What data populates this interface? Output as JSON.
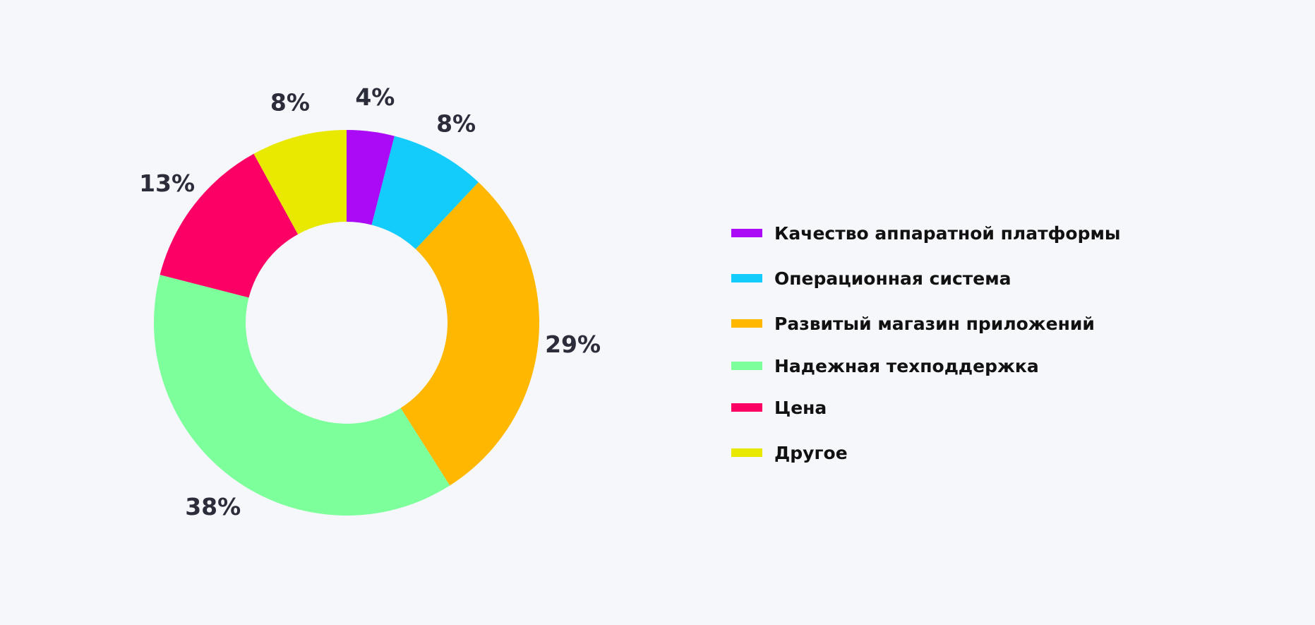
{
  "chart_data": {
    "type": "pie",
    "variant": "donut",
    "labels": [
      "Качество аппаратной платформы",
      "Операционная система",
      "Развитый магазин приложений",
      "Надежная техподдержка",
      "Цена",
      "Другое"
    ],
    "values": [
      4,
      8,
      29,
      38,
      13,
      8
    ],
    "value_labels": [
      "4%",
      "8%",
      "29%",
      "38%",
      "13%",
      "8%"
    ],
    "colors": [
      "#aa0af5",
      "#13ccfc",
      "#ffb700",
      "#7dff9b",
      "#fc0065",
      "#e9e900"
    ],
    "unit": "%",
    "legend_position": "right"
  }
}
